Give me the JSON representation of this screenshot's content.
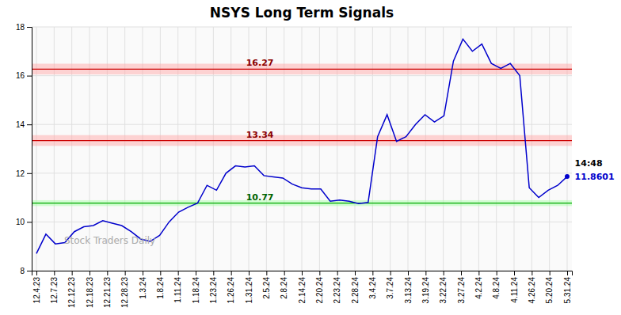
{
  "chart_data": {
    "type": "line",
    "title": "NSYS Long Term Signals",
    "values": [
      8.7,
      9.5,
      9.1,
      9.15,
      9.6,
      9.8,
      9.85,
      10.05,
      9.95,
      9.85,
      9.6,
      9.3,
      9.2,
      9.45,
      10.0,
      10.4,
      10.6,
      10.77,
      11.5,
      11.3,
      12.0,
      12.3,
      12.25,
      12.3,
      11.9,
      11.85,
      11.8,
      11.55,
      11.4,
      11.35,
      11.35,
      10.85,
      10.9,
      10.85,
      10.75,
      10.8,
      13.5,
      14.4,
      13.3,
      13.5,
      14.0,
      14.4,
      14.1,
      14.35,
      16.6,
      17.5,
      17.0,
      17.3,
      16.5,
      16.3,
      16.5,
      16.0,
      11.4,
      11.0,
      11.3,
      11.5,
      11.86
    ],
    "color": "#0000CC",
    "xlim": [
      -0.5,
      56.5
    ],
    "xticks": [
      {
        "value": 0,
        "label": "12.4.23"
      },
      {
        "value": 1.8666666666666667,
        "label": "12.7.23"
      },
      {
        "value": 3.7333333333333334,
        "label": "12.12.23"
      },
      {
        "value": 5.6,
        "label": "12.18.23"
      },
      {
        "value": 7.466666666666667,
        "label": "12.21.23"
      },
      {
        "value": 9.333333333333334,
        "label": "12.28.23"
      },
      {
        "value": 11.2,
        "label": "1.3.24"
      },
      {
        "value": 13.066666666666666,
        "label": "1.8.24"
      },
      {
        "value": 14.933333333333334,
        "label": "1.11.24"
      },
      {
        "value": 16.8,
        "label": "1.18.24"
      },
      {
        "value": 18.666666666666668,
        "label": "1.23.24"
      },
      {
        "value": 20.533333333333335,
        "label": "1.26.24"
      },
      {
        "value": 22.4,
        "label": "1.31.24"
      },
      {
        "value": 24.266666666666666,
        "label": "2.5.24"
      },
      {
        "value": 26.133333333333333,
        "label": "2.8.24"
      },
      {
        "value": 28,
        "label": "2.14.24"
      },
      {
        "value": 29.866666666666667,
        "label": "2.20.24"
      },
      {
        "value": 31.733333333333334,
        "label": "2.23.24"
      },
      {
        "value": 33.6,
        "label": "2.28.24"
      },
      {
        "value": 35.46666666666667,
        "label": "3.4.24"
      },
      {
        "value": 37.333333333333336,
        "label": "3.7.24"
      },
      {
        "value": 39.2,
        "label": "3.13.24"
      },
      {
        "value": 41.06666666666667,
        "label": "3.19.24"
      },
      {
        "value": 42.93333333333333,
        "label": "3.22.24"
      },
      {
        "value": 44.8,
        "label": "3.27.24"
      },
      {
        "value": 46.666666666666664,
        "label": "4.2.24"
      },
      {
        "value": 48.53333333333333,
        "label": "4.8.24"
      },
      {
        "value": 50.4,
        "label": "4.11.24"
      },
      {
        "value": 52.266666666666666,
        "label": "4.26.24"
      },
      {
        "value": 54.13333333333333,
        "label": "5.20.24"
      },
      {
        "value": 56,
        "label": "5.31.24"
      }
    ],
    "ylim": [
      8,
      18
    ],
    "yticks": [
      8,
      10,
      12,
      14,
      16,
      18
    ],
    "grid": true,
    "reference_lines": [
      {
        "value": 16.27,
        "label": "16.27",
        "color": "#CC0000"
      },
      {
        "value": 13.34,
        "label": "13.34",
        "color": "#CC0000"
      },
      {
        "value": 10.77,
        "label": "10.77",
        "color": "#00AA00"
      }
    ],
    "annotations": [
      {
        "text": "14:48"
      },
      {
        "text": "11.8601",
        "color": "#0000CC"
      }
    ],
    "watermark": "Stock Traders Daily"
  }
}
